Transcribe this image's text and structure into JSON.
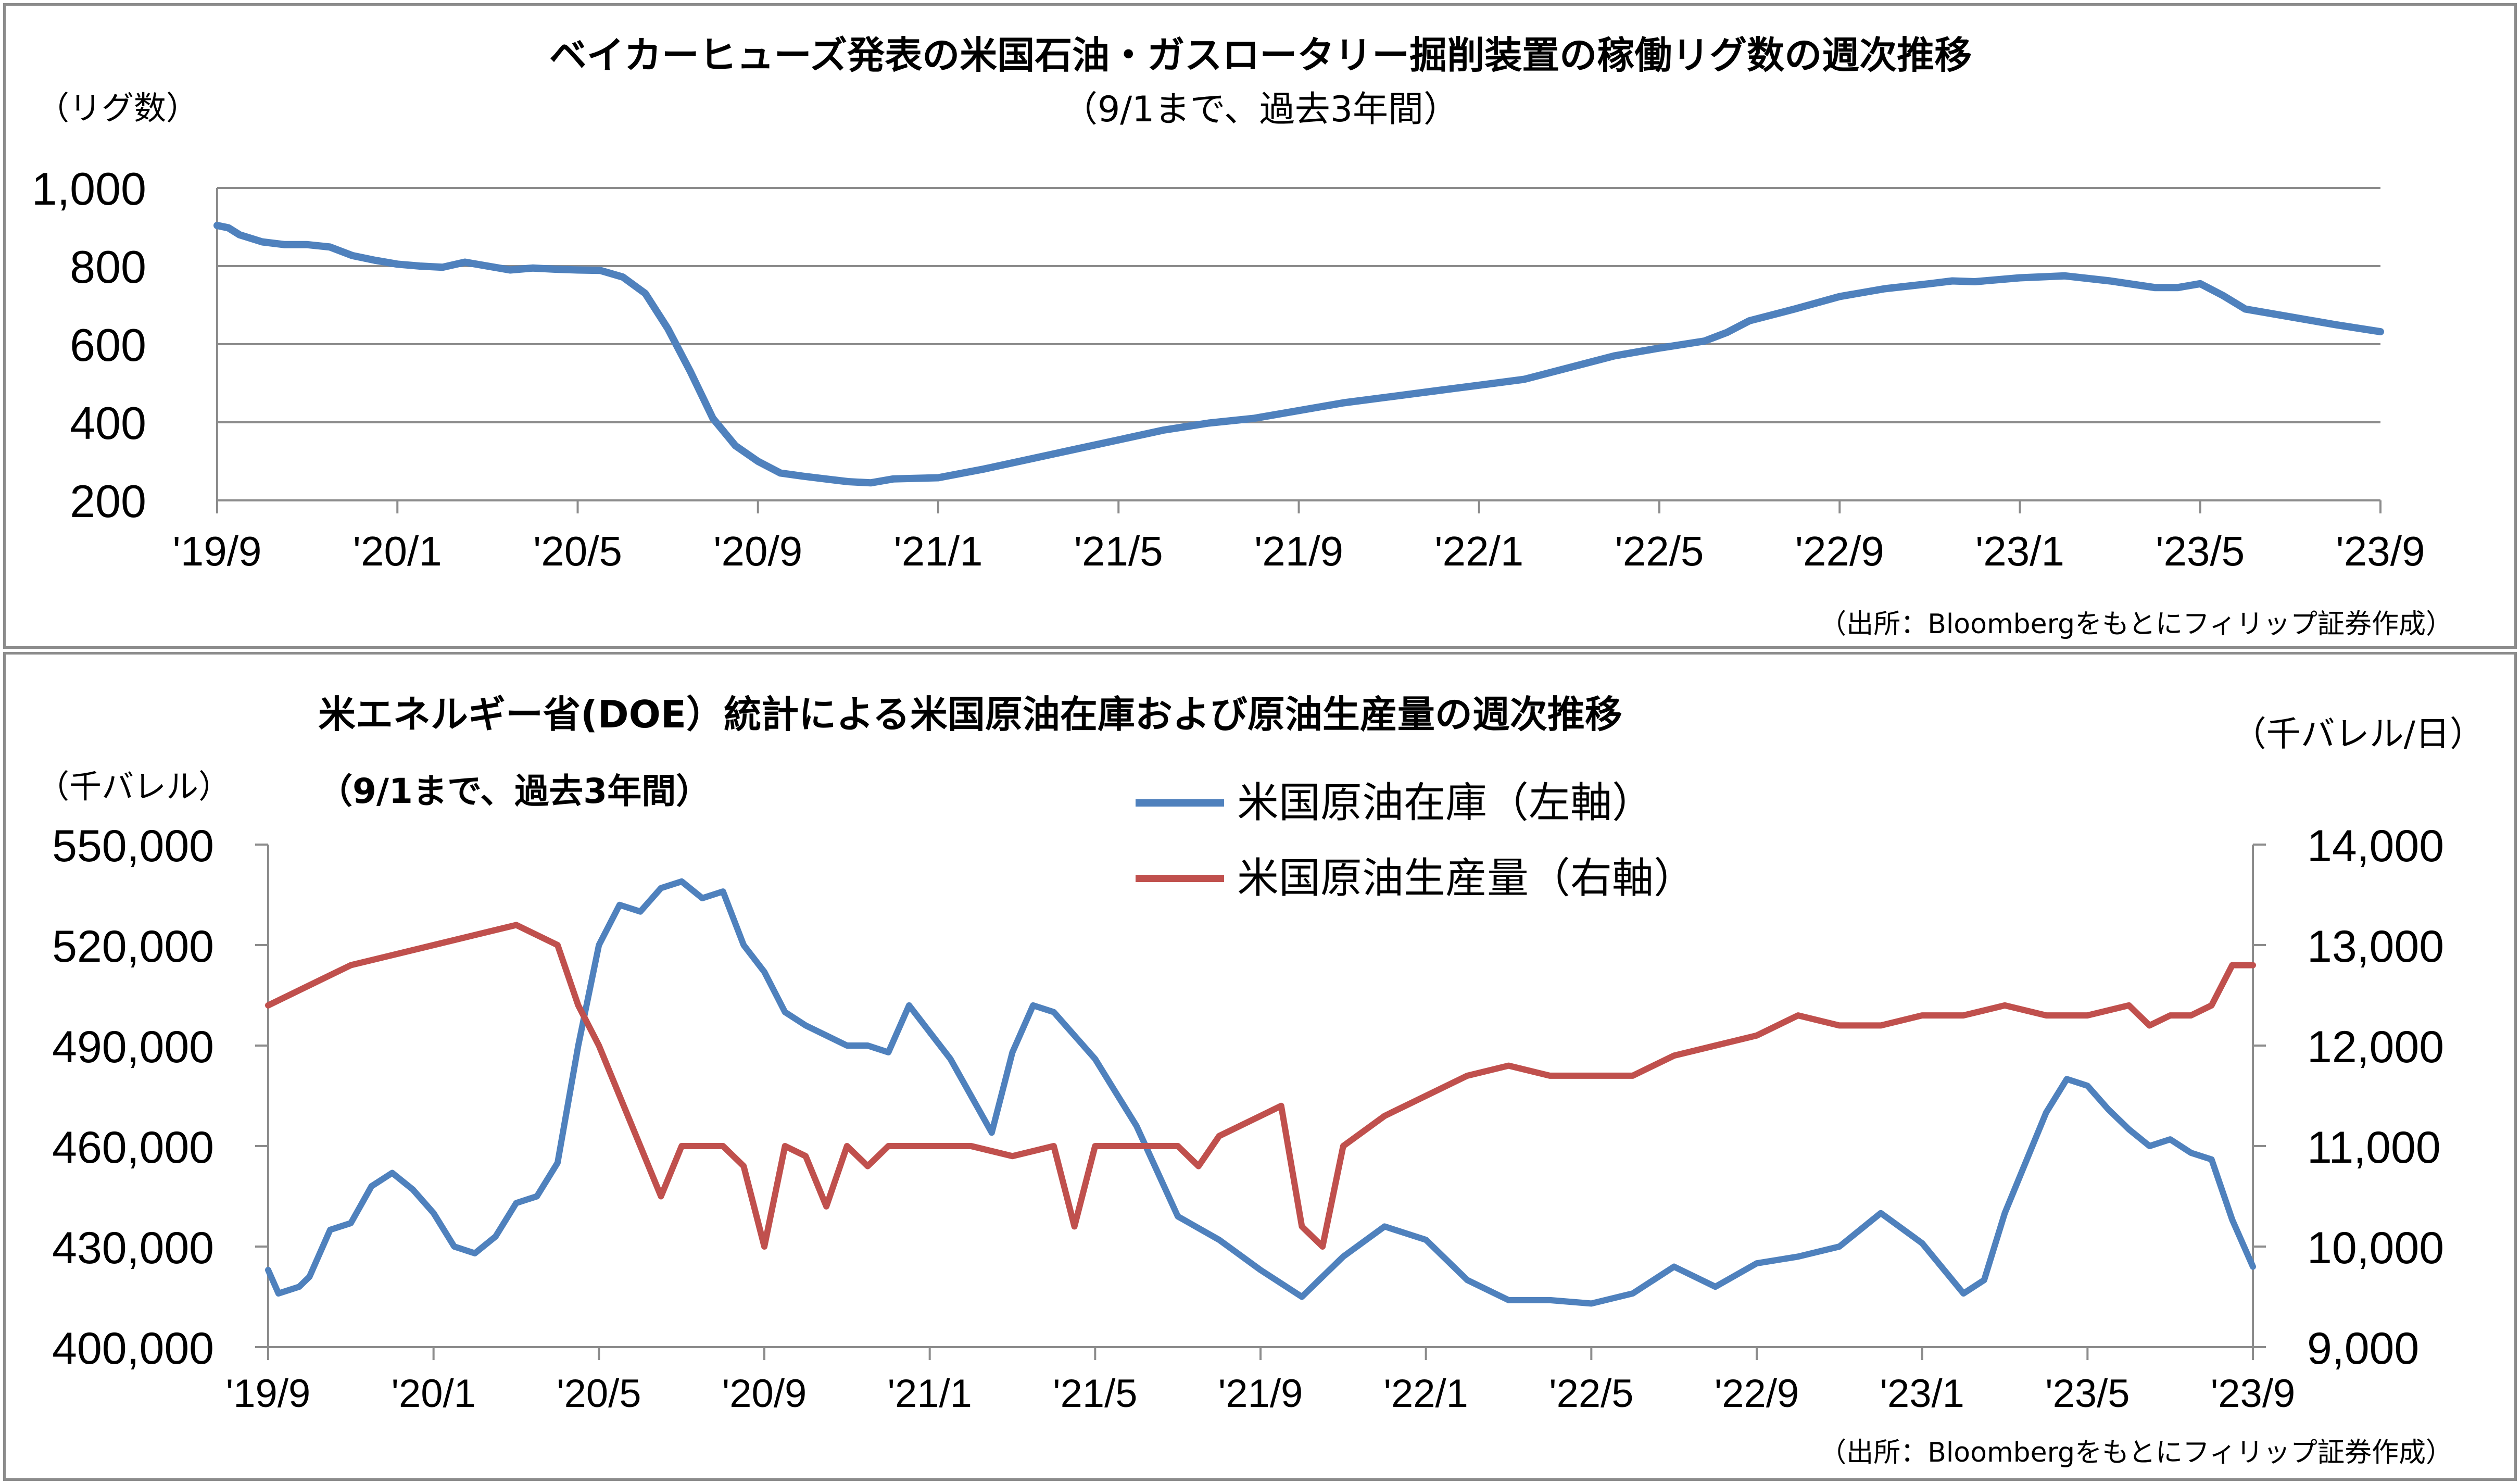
{
  "chart_data": [
    {
      "type": "line",
      "title": "ベイカーヒューズ発表の米国石油・ガスロータリー掘削装置の稼働リグ数の週次推移",
      "subtitle": "（9/1まで、過去3年間）",
      "ylabel": "（リグ数）",
      "source": "（出所：Bloombergをもとにフィリップ証券作成）",
      "ylim": [
        200,
        1000
      ],
      "yticks": [
        "200",
        "400",
        "600",
        "800",
        "1,000"
      ],
      "xticks": [
        "'19/9",
        "'20/1",
        "'20/5",
        "'20/9",
        "'21/1",
        "'21/5",
        "'21/9",
        "'22/1",
        "'22/5",
        "'22/9",
        "'23/1",
        "'23/5",
        "'23/9"
      ],
      "grid": true,
      "x_months": [
        0,
        0.25,
        0.5,
        1,
        1.5,
        2,
        2.5,
        3,
        3.5,
        4,
        4.5,
        5,
        5.5,
        6,
        6.5,
        7,
        7.5,
        8,
        8.5,
        9,
        9.5,
        10,
        10.5,
        11,
        11.5,
        12,
        12.5,
        13,
        13.5,
        14,
        14.5,
        15,
        16,
        17,
        18,
        19,
        20,
        21,
        22,
        23,
        24,
        25,
        26,
        27,
        28,
        29,
        30,
        31,
        32,
        33,
        33.5,
        34,
        35,
        36,
        37,
        38,
        38.5,
        39,
        40,
        41,
        42,
        43,
        43.5,
        44,
        44.5,
        45,
        46,
        47,
        48
      ],
      "series": [
        {
          "color": "#4F81BD",
          "values": [
            904,
            898,
            880,
            862,
            855,
            855,
            849,
            827,
            815,
            805,
            800,
            797,
            810,
            800,
            790,
            795,
            792,
            790,
            789,
            772,
            730,
            640,
            530,
            410,
            340,
            300,
            270,
            262,
            255,
            248,
            245,
            255,
            258,
            280,
            305,
            330,
            355,
            380,
            398,
            410,
            430,
            450,
            465,
            480,
            495,
            510,
            540,
            570,
            590,
            608,
            630,
            660,
            690,
            722,
            742,
            755,
            762,
            760,
            770,
            775,
            762,
            745,
            745,
            755,
            725,
            690,
            670,
            650,
            632
          ]
        }
      ]
    },
    {
      "type": "line",
      "title": "米エネルギー省(DOE）統計による米国原油在庫および原油生産量の週次推移",
      "subtitle": "（9/1まで、過去3年間）",
      "ylabel_left": "（千バレル）",
      "ylabel_right": "（千バレル/日）",
      "source": "（出所：Bloombergをもとにフィリップ証券作成）",
      "ylim_left": [
        400000,
        550000
      ],
      "ylim_right": [
        9000,
        14000
      ],
      "yticks_left": [
        "400,000",
        "430,000",
        "460,000",
        "490,000",
        "520,000",
        "550,000"
      ],
      "yticks_right": [
        "9,000",
        "10,000",
        "11,000",
        "12,000",
        "13,000",
        "14,000"
      ],
      "xticks": [
        "'19/9",
        "'20/1",
        "'20/5",
        "'20/9",
        "'21/1",
        "'21/5",
        "'21/9",
        "'22/1",
        "'22/5",
        "'22/9",
        "'23/1",
        "'23/5",
        "'23/9"
      ],
      "legend": "top-center",
      "series": [
        {
          "name": "米国原油在庫（左軸）",
          "color": "#4F81BD",
          "axis": "left",
          "x_months": [
            0,
            0.25,
            0.75,
            1,
            1.5,
            2,
            2.5,
            3,
            3.5,
            4,
            4.5,
            5,
            5.5,
            6,
            6.5,
            7,
            7.5,
            8,
            8.5,
            9,
            9.5,
            10,
            10.5,
            11,
            11.5,
            12,
            12.5,
            13,
            13.5,
            14,
            14.5,
            15,
            15.5,
            16,
            16.5,
            17,
            17.5,
            18,
            18.5,
            19,
            19.5,
            20,
            20.5,
            21,
            22,
            23,
            24,
            25,
            26,
            27,
            28,
            29,
            30,
            31,
            32,
            33,
            34,
            35,
            36,
            37,
            38,
            39,
            40,
            41,
            41.5,
            42,
            42.5,
            43,
            43.5,
            44,
            44.5,
            45,
            45.5,
            46,
            46.5,
            47,
            47.5,
            48
          ],
          "values": [
            423000,
            416000,
            418000,
            421000,
            435000,
            437000,
            448000,
            452000,
            447000,
            440000,
            430000,
            428000,
            433000,
            443000,
            445000,
            455000,
            490000,
            520000,
            532000,
            530000,
            537000,
            539000,
            534000,
            536000,
            520000,
            512000,
            500000,
            496000,
            493000,
            490000,
            490000,
            488000,
            502000,
            494000,
            486000,
            475000,
            464000,
            488000,
            502000,
            500000,
            493000,
            486000,
            476000,
            466000,
            439000,
            432000,
            423000,
            415000,
            427000,
            436000,
            432000,
            420000,
            414000,
            414000,
            413000,
            416000,
            424000,
            418000,
            425000,
            427000,
            430000,
            440000,
            431000,
            416000,
            420000,
            440000,
            455000,
            470000,
            480000,
            478000,
            471000,
            465000,
            460000,
            462000,
            458000,
            456000,
            438000,
            424000
          ]
        },
        {
          "name": "米国原油生産量（右軸）",
          "color": "#C0504D",
          "axis": "right",
          "x_months": [
            0,
            1,
            2,
            3,
            4,
            5,
            6,
            7,
            7.5,
            8,
            8.5,
            9,
            9.5,
            10,
            10.5,
            11,
            11.5,
            12,
            12.5,
            13,
            13.5,
            14,
            14.5,
            15,
            15.5,
            16,
            17,
            18,
            19,
            19.5,
            20,
            20.5,
            21,
            22,
            22.5,
            23,
            24,
            24.5,
            25,
            25.5,
            26,
            27,
            28,
            29,
            30,
            31,
            32,
            33,
            34,
            35,
            36,
            37,
            38,
            39,
            40,
            41,
            42,
            43,
            44,
            45,
            45.5,
            46,
            46.5,
            47,
            47.5,
            48
          ],
          "values": [
            12400,
            12600,
            12800,
            12900,
            13000,
            13100,
            13200,
            13000,
            12400,
            12000,
            11500,
            11000,
            10500,
            11000,
            11000,
            11000,
            10800,
            10000,
            11000,
            10900,
            10400,
            11000,
            10800,
            11000,
            11000,
            11000,
            11000,
            10900,
            11000,
            10200,
            11000,
            11000,
            11000,
            11000,
            10800,
            11100,
            11300,
            11400,
            10200,
            10000,
            11000,
            11300,
            11500,
            11700,
            11800,
            11700,
            11700,
            11700,
            11900,
            12000,
            12100,
            12300,
            12200,
            12200,
            12300,
            12300,
            12400,
            12300,
            12300,
            12400,
            12200,
            12300,
            12300,
            12400,
            12800,
            12800
          ]
        }
      ]
    }
  ]
}
